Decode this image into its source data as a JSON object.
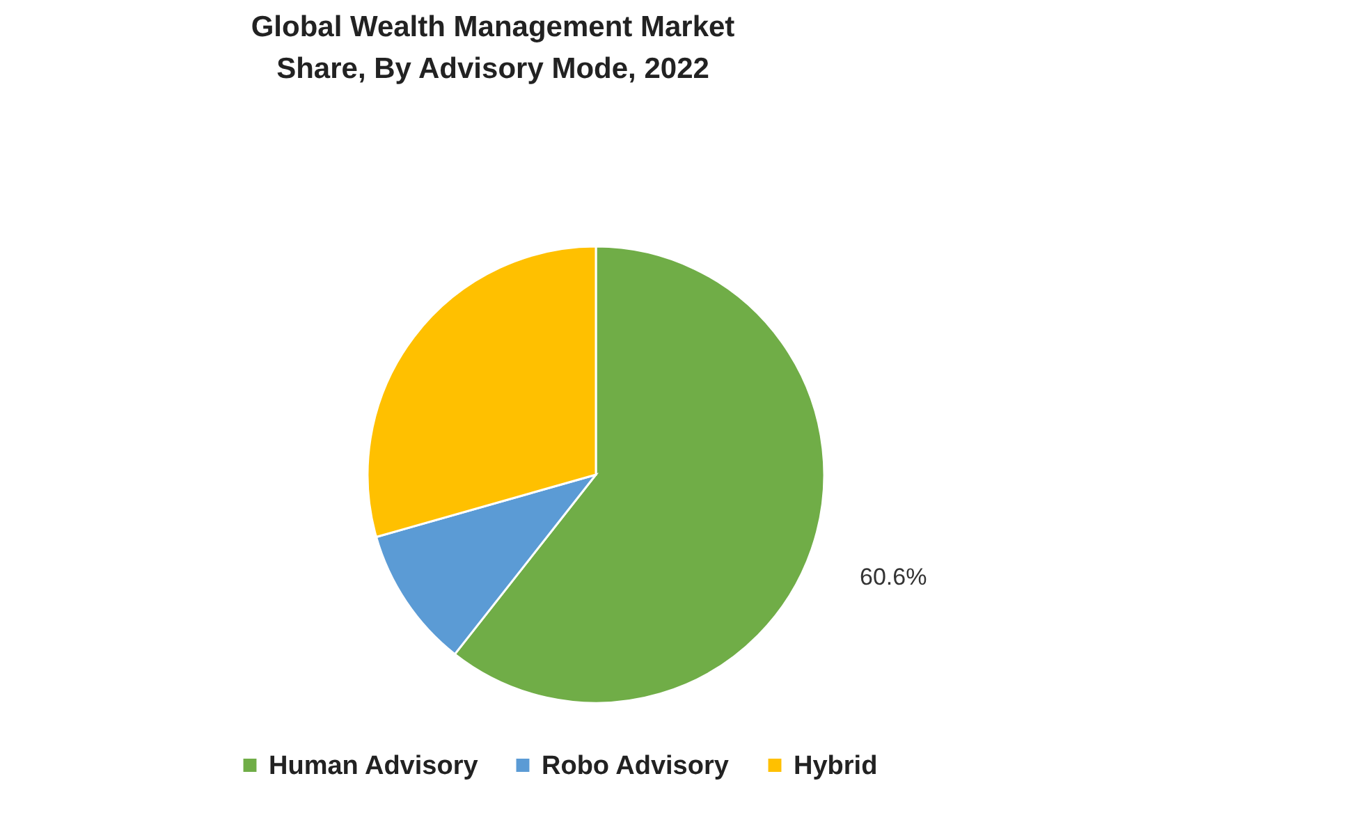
{
  "chart_data": {
    "type": "pie",
    "title": "Global Wealth Management Market Share, By Advisory Mode, 2022",
    "categories": [
      "Human Advisory",
      "Robo Advisory",
      "Hybrid"
    ],
    "values": [
      60.6,
      10.0,
      29.4
    ],
    "colors": [
      "#70ad47",
      "#5b9bd5",
      "#ffc000"
    ],
    "value_labels": [
      "60.6%",
      null,
      null
    ],
    "legend": "bottom"
  }
}
